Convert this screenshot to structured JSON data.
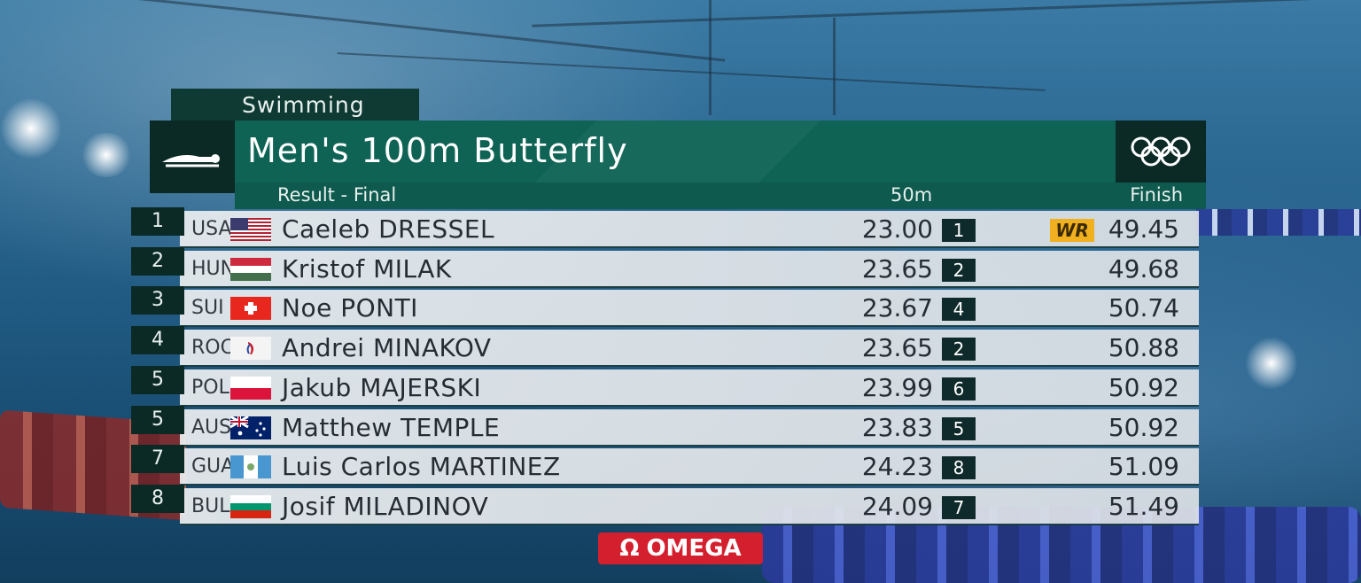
{
  "sport": "Swimming",
  "event_title": "Men's 100m Butterfly",
  "headers": {
    "result": "Result - Final",
    "split": "50m",
    "finish": "Finish"
  },
  "rows": [
    {
      "rank": "1",
      "noc": "USA",
      "flag": "usa-flag",
      "athlete": "Caeleb DRESSEL",
      "split": "23.00",
      "split_rank": "1",
      "badge": "WR",
      "finish": "49.45"
    },
    {
      "rank": "2",
      "noc": "HUN",
      "flag": "hungary-flag",
      "athlete": "Kristof MILAK",
      "split": "23.65",
      "split_rank": "2",
      "badge": "",
      "finish": "49.68"
    },
    {
      "rank": "3",
      "noc": "SUI",
      "flag": "switzerland-flag",
      "athlete": "Noe PONTI",
      "split": "23.67",
      "split_rank": "4",
      "badge": "",
      "finish": "50.74"
    },
    {
      "rank": "4",
      "noc": "ROC",
      "flag": "roc-flag",
      "athlete": "Andrei MINAKOV",
      "split": "23.65",
      "split_rank": "2",
      "badge": "",
      "finish": "50.88"
    },
    {
      "rank": "5",
      "noc": "POL",
      "flag": "poland-flag",
      "athlete": "Jakub MAJERSKI",
      "split": "23.99",
      "split_rank": "6",
      "badge": "",
      "finish": "50.92"
    },
    {
      "rank": "5",
      "noc": "AUS",
      "flag": "australia-flag",
      "athlete": "Matthew TEMPLE",
      "split": "23.83",
      "split_rank": "5",
      "badge": "",
      "finish": "50.92"
    },
    {
      "rank": "7",
      "noc": "GUA",
      "flag": "guatemala-flag",
      "athlete": "Luis Carlos MARTINEZ",
      "split": "24.23",
      "split_rank": "8",
      "badge": "",
      "finish": "51.09"
    },
    {
      "rank": "8",
      "noc": "BUL",
      "flag": "bulgaria-flag",
      "athlete": "Josif MILADINOV",
      "split": "24.09",
      "split_rank": "7",
      "badge": "",
      "finish": "51.49"
    }
  ],
  "sponsor": "OMEGA",
  "colors": {
    "title_bar": "#0e6355",
    "dark_box": "#0b2a26",
    "wr_badge": "#f0b020",
    "omega": "#d4202e"
  }
}
